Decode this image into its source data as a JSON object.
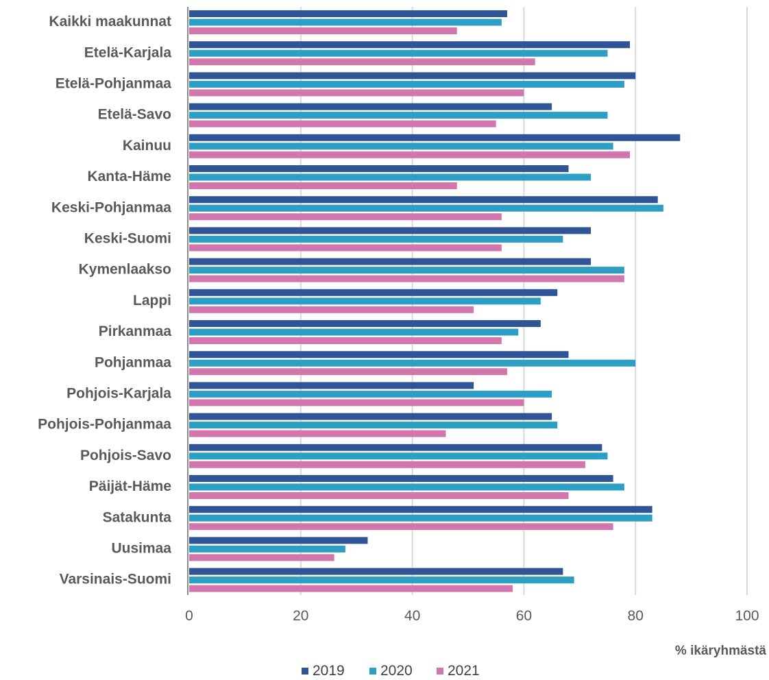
{
  "chart_data": {
    "type": "bar",
    "orientation": "horizontal",
    "title": "",
    "xlabel": "% ikäryhmästä",
    "ylabel": "",
    "xlim": [
      0,
      100
    ],
    "xticks": [
      0,
      20,
      40,
      60,
      80,
      100
    ],
    "grid": "vertical",
    "legend_position": "bottom",
    "categories": [
      "Kaikki maakunnat",
      "Etelä-Karjala",
      "Etelä-Pohjanmaa",
      "Etelä-Savo",
      "Kainuu",
      "Kanta-Häme",
      "Keski-Pohjanmaa",
      "Keski-Suomi",
      "Kymenlaakso",
      "Lappi",
      "Pirkanmaa",
      "Pohjanmaa",
      "Pohjois-Karjala",
      "Pohjois-Pohjanmaa",
      "Pohjois-Savo",
      "Päijät-Häme",
      "Satakunta",
      "Uusimaa",
      "Varsinais-Suomi"
    ],
    "series": [
      {
        "name": "2019",
        "color": "#2f5597",
        "values": [
          57,
          79,
          80,
          65,
          88,
          68,
          84,
          72,
          72,
          66,
          63,
          68,
          51,
          65,
          74,
          76,
          83,
          32,
          67
        ]
      },
      {
        "name": "2020",
        "color": "#2e9fc4",
        "values": [
          56,
          75,
          78,
          75,
          76,
          72,
          85,
          67,
          78,
          63,
          59,
          80,
          65,
          66,
          75,
          78,
          83,
          28,
          69
        ]
      },
      {
        "name": "2021",
        "color": "#d277ad",
        "values": [
          48,
          62,
          60,
          55,
          79,
          48,
          56,
          56,
          78,
          51,
          56,
          57,
          60,
          46,
          71,
          68,
          76,
          26,
          58
        ]
      }
    ]
  }
}
